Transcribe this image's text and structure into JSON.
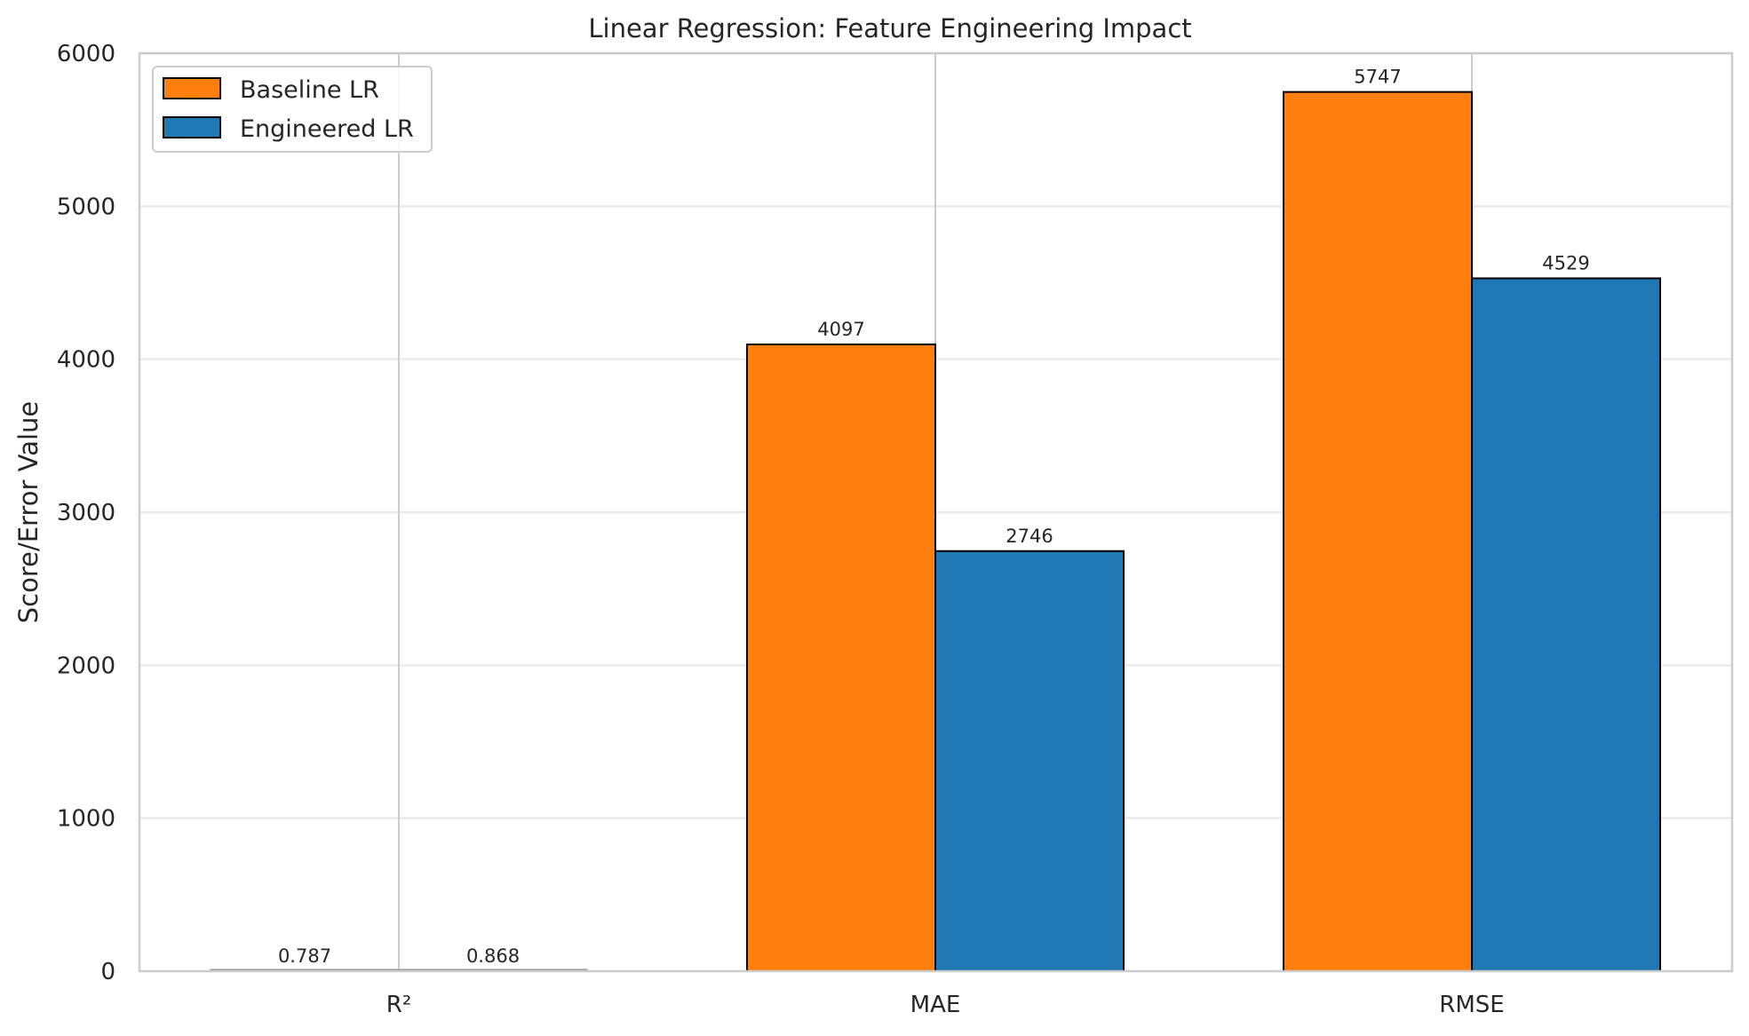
{
  "chart_data": {
    "type": "bar",
    "title": "Linear Regression: Feature Engineering Impact",
    "xlabel": "",
    "ylabel": "Score/Error Value",
    "categories": [
      "R²",
      "MAE",
      "RMSE"
    ],
    "series": [
      {
        "name": "Baseline LR",
        "values": [
          0.787,
          4097,
          5747
        ],
        "labels": [
          "0.787",
          "4097",
          "5747"
        ],
        "color": "#ff7f0e"
      },
      {
        "name": "Engineered LR",
        "values": [
          0.868,
          2746,
          4529
        ],
        "labels": [
          "0.868",
          "2746",
          "4529"
        ],
        "color": "#1f77b4"
      }
    ],
    "ylim": [
      0,
      6000
    ],
    "yticks": [
      0,
      1000,
      2000,
      3000,
      4000,
      5000,
      6000
    ],
    "grid": true,
    "legend_position": "top-left"
  }
}
